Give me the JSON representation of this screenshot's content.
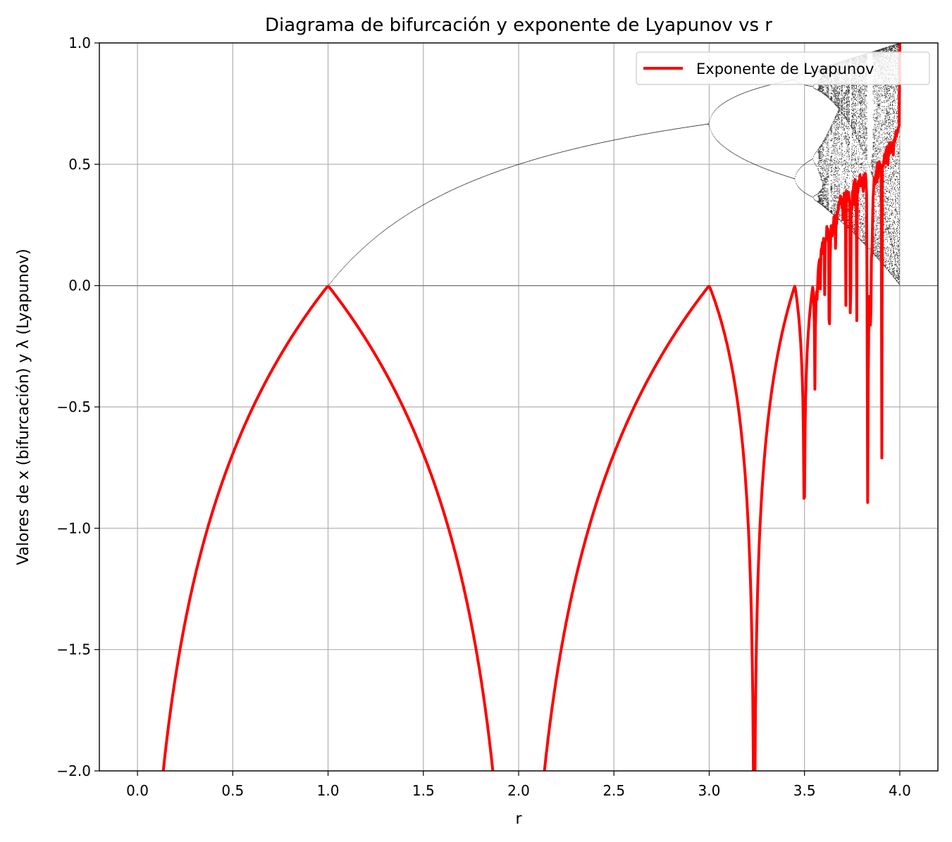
{
  "chart_data": {
    "type": "line",
    "title": "Diagrama de bifurcación y exponente de Lyapunov vs r",
    "xlabel": "r",
    "ylabel": "Valores de x (bifurcación) y λ (Lyapunov)",
    "xlim": [
      -0.2,
      4.2
    ],
    "ylim": [
      -2.0,
      1.0
    ],
    "xticks": [
      0.0,
      0.5,
      1.0,
      1.5,
      2.0,
      2.5,
      3.0,
      3.5,
      4.0
    ],
    "xtick_labels": [
      "0.0",
      "0.5",
      "1.0",
      "1.5",
      "2.0",
      "2.5",
      "3.0",
      "3.5",
      "4.0"
    ],
    "yticks": [
      1.0,
      0.5,
      0.0,
      -0.5,
      -1.0,
      -1.5,
      -2.0
    ],
    "ytick_labels": [
      "1.0",
      "0.5",
      "0.0",
      "−0.5",
      "−1.0",
      "−1.5",
      "−2.0"
    ],
    "grid": true,
    "reference_line_y": 0,
    "legend": {
      "position": "top-right",
      "entries": [
        "Exponente de Lyapunov"
      ]
    },
    "series": [
      {
        "name": "Exponente de Lyapunov",
        "color": "#ff0000",
        "function": "lambda(r) = (1/N) * sum(ln|r(1-2x_n)|) for logistic map x_{n+1}=r x_n (1-x_n)",
        "r_range": [
          0.0,
          4.0
        ]
      },
      {
        "role": "bifurcation diagram",
        "color": "#000000",
        "function": "x_{n+1} = r x_n (1 - x_n), attractor values after transient",
        "r_range": [
          0.0,
          4.0
        ]
      }
    ]
  }
}
